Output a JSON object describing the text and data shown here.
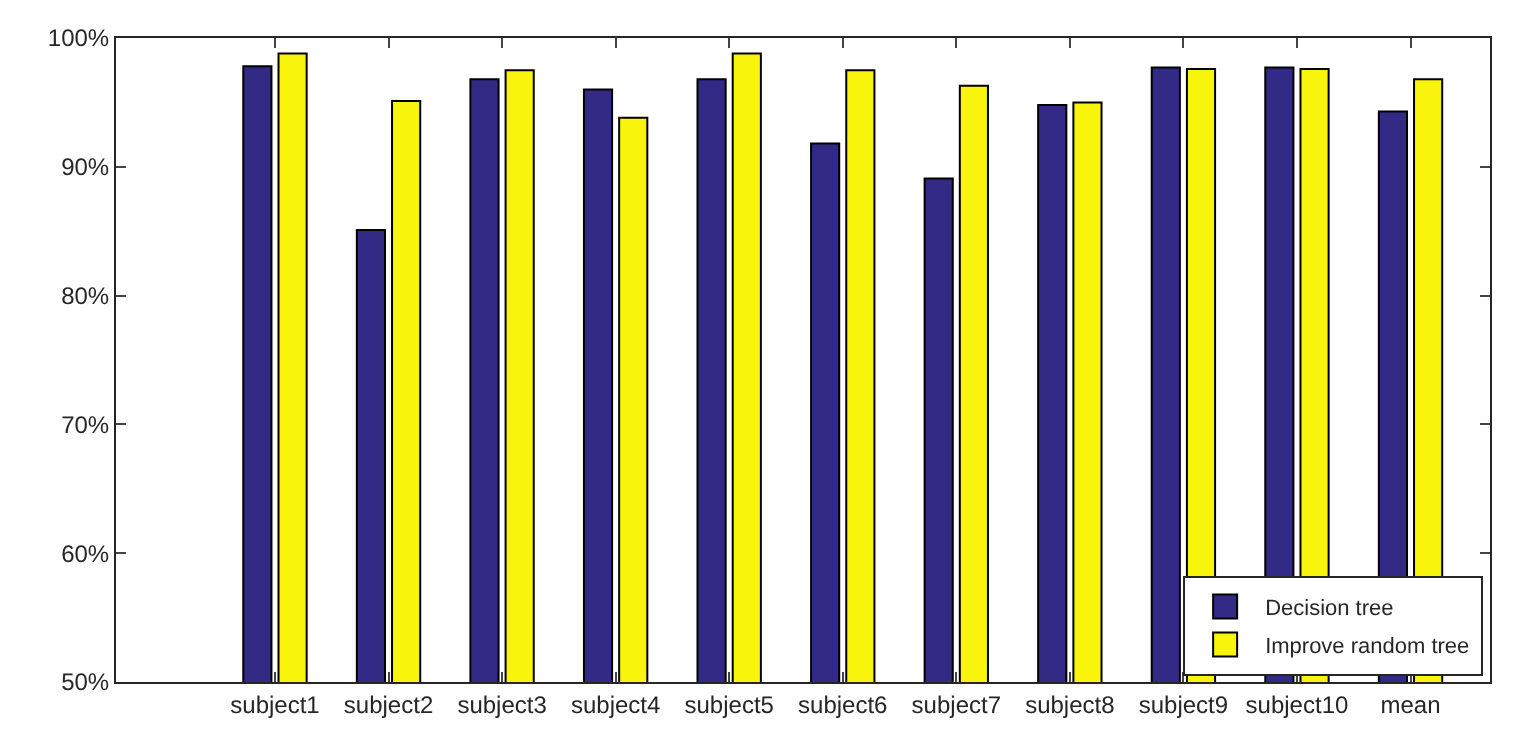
{
  "chart_data": {
    "type": "bar",
    "categories": [
      "subject1",
      "subject2",
      "subject3",
      "subject4",
      "subject5",
      "subject6",
      "subject7",
      "subject8",
      "subject9",
      "subject10",
      "mean"
    ],
    "series": [
      {
        "name": "Decision tree",
        "color": "#332a85",
        "values": [
          97.8,
          85.1,
          96.8,
          96.0,
          96.8,
          91.8,
          89.1,
          94.8,
          97.7,
          97.7,
          94.3
        ]
      },
      {
        "name": "Improve random tree",
        "color": "#f8f40c",
        "values": [
          98.8,
          95.1,
          97.5,
          93.8,
          98.8,
          97.5,
          96.3,
          95.0,
          97.6,
          97.6,
          96.8
        ]
      }
    ],
    "ylim": [
      50,
      100
    ],
    "yticks": [
      {
        "value": 50,
        "label": "50%"
      },
      {
        "value": 60,
        "label": "60%"
      },
      {
        "value": 70,
        "label": "70%"
      },
      {
        "value": 80,
        "label": "80%"
      },
      {
        "value": 90,
        "label": "90%"
      },
      {
        "value": 100,
        "label": "100%"
      }
    ],
    "legend": "bottom right"
  }
}
